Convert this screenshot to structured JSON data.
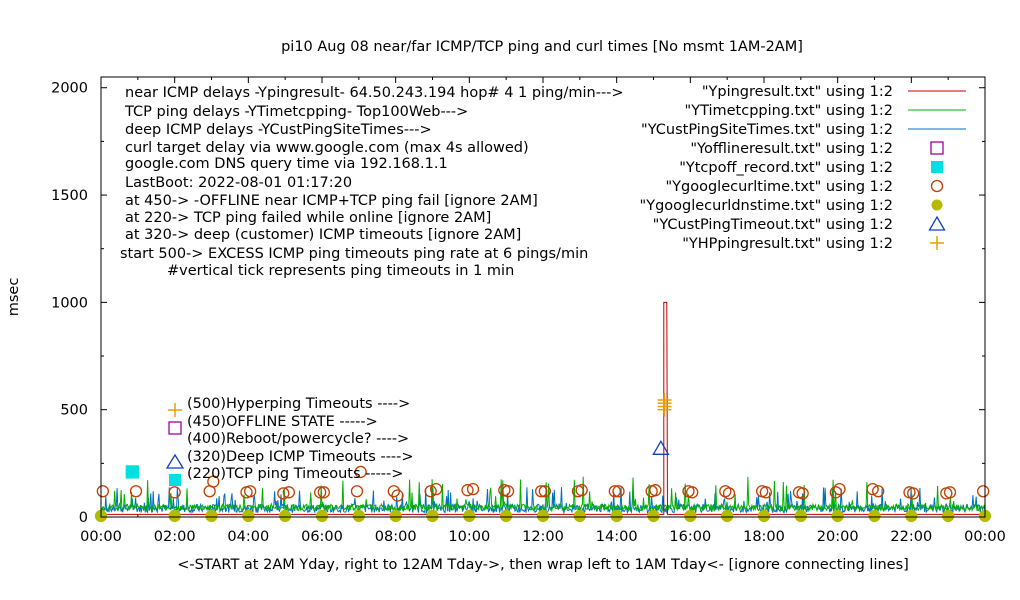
{
  "chart_data": {
    "type": "scatter",
    "title": "pi10 Aug 08  near/far ICMP/TCP ping and curl times [No msmt 1AM-2AM]",
    "xlabel": "<-START at 2AM Yday, right to 12AM Tday->, then wrap left to 1AM Tday<- [ignore connecting lines]",
    "ylabel": "msec",
    "xlim": [
      0,
      24
    ],
    "ylim": [
      0,
      2050
    ],
    "x_ticks": [
      "00:00",
      "02:00",
      "04:00",
      "06:00",
      "08:00",
      "10:00",
      "12:00",
      "14:00",
      "16:00",
      "18:00",
      "20:00",
      "22:00",
      "00:00"
    ],
    "y_ticks": [
      "0",
      "500",
      "1000",
      "1500",
      "2000"
    ],
    "legend_placement": "top-right",
    "notes": [
      "near ICMP delays -Ypingresult- 64.50.243.194 hop# 4 1 ping/min--->",
      "TCP ping delays -YTimetcpping- Top100Web--->",
      "deep ICMP delays -YCustPingSiteTimes--->",
      "curl target delay via www.google.com (max 4s allowed)",
      "google.com DNS query time via 192.168.1.1",
      "LastBoot: 2022-08-01 01:17:20",
      "at 450-> -OFFLINE near ICMP+TCP ping fail [ignore 2AM]",
      "at 220-> TCP ping failed while online [ignore 2AM]",
      "at 320-> deep (customer) ICMP timeouts [ignore 2AM]",
      "start 500-> EXCESS ICMP ping timeouts ping rate at 6 pings/min",
      "#vertical tick represents ping timeouts in 1 min"
    ],
    "key_labels": [
      "(500)Hyperping Timeouts ---->",
      "(450)OFFLINE STATE ----->",
      "(400)Reboot/powercycle? ---->",
      "(320)Deep ICMP Timeouts ---->",
      "(220)TCP ping Timeouts ----->"
    ],
    "series": [
      {
        "name": "\"Ypingresult.txt\" using 1:2",
        "style": "line",
        "color": "#c00000",
        "baseline": 12,
        "spikes": [
          [
            15.28,
            1000
          ],
          [
            15.36,
            1000
          ]
        ]
      },
      {
        "name": "\"YTimetcpping.txt\" using 1:2",
        "style": "line",
        "color": "#00b000",
        "baseline": 45,
        "spike_range": [
          60,
          190
        ]
      },
      {
        "name": "\"YCustPingSiteTimes.txt\" using 1:2",
        "style": "line",
        "color": "#0070c0",
        "baseline": 40,
        "spike_range": [
          60,
          140
        ]
      },
      {
        "name": "\"Yofflineresult.txt\" using 1:2",
        "style": "open-square",
        "color": "#a000a0",
        "points": []
      },
      {
        "name": "\"Ytcpoff_record.txt\" using 1:2",
        "style": "filled-square",
        "color": "#00e0e0",
        "points": [
          [
            0.85,
            210
          ]
        ]
      },
      {
        "name": "\"Ygooglecurltime.txt\" using 1:2",
        "style": "open-circle",
        "color": "#c04000",
        "points": [
          [
            0.05,
            120
          ],
          [
            0.95,
            120
          ],
          [
            2.0,
            115
          ],
          [
            2.95,
            120
          ],
          [
            3.05,
            165
          ],
          [
            3.95,
            115
          ],
          [
            4.05,
            120
          ],
          [
            4.95,
            110
          ],
          [
            5.1,
            115
          ],
          [
            5.95,
            115
          ],
          [
            6.05,
            115
          ],
          [
            6.95,
            120
          ],
          [
            7.05,
            210
          ],
          [
            7.95,
            120
          ],
          [
            8.05,
            100
          ],
          [
            8.95,
            120
          ],
          [
            9.1,
            130
          ],
          [
            9.95,
            125
          ],
          [
            10.1,
            130
          ],
          [
            10.95,
            125
          ],
          [
            11.05,
            120
          ],
          [
            11.95,
            120
          ],
          [
            12.05,
            120
          ],
          [
            12.95,
            120
          ],
          [
            13.05,
            125
          ],
          [
            13.95,
            120
          ],
          [
            14.05,
            120
          ],
          [
            14.95,
            120
          ],
          [
            15.05,
            125
          ],
          [
            15.95,
            120
          ],
          [
            16.05,
            115
          ],
          [
            16.95,
            120
          ],
          [
            17.05,
            110
          ],
          [
            17.95,
            120
          ],
          [
            18.05,
            115
          ],
          [
            18.95,
            115
          ],
          [
            19.05,
            110
          ],
          [
            19.95,
            115
          ],
          [
            20.05,
            130
          ],
          [
            20.95,
            130
          ],
          [
            21.1,
            120
          ],
          [
            21.95,
            115
          ],
          [
            22.05,
            110
          ],
          [
            22.95,
            110
          ],
          [
            23.05,
            115
          ],
          [
            23.95,
            120
          ]
        ]
      },
      {
        "name": "\"Ygooglecurldnstime.txt\" using 1:2",
        "style": "filled-circle",
        "color": "#b8b800",
        "points_every_hour": true,
        "y": 5
      },
      {
        "name": "\"YCustPingTimeout.txt\" using 1:2",
        "style": "open-triangle",
        "color": "#1040c0",
        "points": [
          [
            15.2,
            320
          ]
        ]
      },
      {
        "name": "\"YHPpingresult.txt\" using 1:2",
        "style": "plus",
        "color": "#e8a000",
        "points": [
          [
            15.3,
            500
          ],
          [
            15.3,
            515
          ],
          [
            15.3,
            530
          ],
          [
            15.3,
            545
          ]
        ]
      }
    ]
  }
}
